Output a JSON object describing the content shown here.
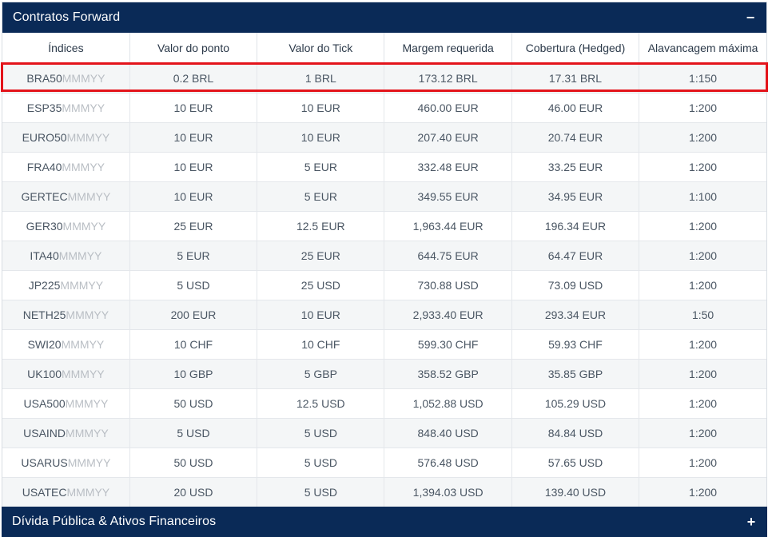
{
  "section_forward": {
    "title": "Contratos Forward",
    "toggle": "−",
    "columns": [
      "Índices",
      "Valor do ponto",
      "Valor do Tick",
      "Margem requerida",
      "Cobertura (Hedged)",
      "Alavancagem máxima"
    ],
    "rows": [
      {
        "symbol": "BRA50",
        "suffix": "MMMYY",
        "point": "0.2 BRL",
        "tick": "1 BRL",
        "margin": "173.12 BRL",
        "hedged": "17.31 BRL",
        "leverage": "1:150"
      },
      {
        "symbol": "ESP35",
        "suffix": "MMMYY",
        "point": "10 EUR",
        "tick": "10 EUR",
        "margin": "460.00 EUR",
        "hedged": "46.00 EUR",
        "leverage": "1:200"
      },
      {
        "symbol": "EURO50",
        "suffix": "MMMYY",
        "point": "10 EUR",
        "tick": "10 EUR",
        "margin": "207.40 EUR",
        "hedged": "20.74 EUR",
        "leverage": "1:200"
      },
      {
        "symbol": "FRA40",
        "suffix": "MMMYY",
        "point": "10 EUR",
        "tick": "5 EUR",
        "margin": "332.48 EUR",
        "hedged": "33.25 EUR",
        "leverage": "1:200"
      },
      {
        "symbol": "GERTEC",
        "suffix": "MMMYY",
        "point": "10 EUR",
        "tick": "5 EUR",
        "margin": "349.55 EUR",
        "hedged": "34.95 EUR",
        "leverage": "1:100"
      },
      {
        "symbol": "GER30",
        "suffix": "MMMYY",
        "point": "25 EUR",
        "tick": "12.5 EUR",
        "margin": "1,963.44 EUR",
        "hedged": "196.34 EUR",
        "leverage": "1:200"
      },
      {
        "symbol": "ITA40",
        "suffix": "MMMYY",
        "point": "5 EUR",
        "tick": "25 EUR",
        "margin": "644.75 EUR",
        "hedged": "64.47 EUR",
        "leverage": "1:200"
      },
      {
        "symbol": "JP225",
        "suffix": "MMMYY",
        "point": "5 USD",
        "tick": "25 USD",
        "margin": "730.88 USD",
        "hedged": "73.09 USD",
        "leverage": "1:200"
      },
      {
        "symbol": "NETH25",
        "suffix": "MMMYY",
        "point": "200 EUR",
        "tick": "10 EUR",
        "margin": "2,933.40 EUR",
        "hedged": "293.34 EUR",
        "leverage": "1:50"
      },
      {
        "symbol": "SWI20",
        "suffix": "MMMYY",
        "point": "10 CHF",
        "tick": "10 CHF",
        "margin": "599.30 CHF",
        "hedged": "59.93 CHF",
        "leverage": "1:200"
      },
      {
        "symbol": "UK100",
        "suffix": "MMMYY",
        "point": "10 GBP",
        "tick": "5 GBP",
        "margin": "358.52 GBP",
        "hedged": "35.85 GBP",
        "leverage": "1:200"
      },
      {
        "symbol": "USA500",
        "suffix": "MMMYY",
        "point": "50 USD",
        "tick": "12.5 USD",
        "margin": "1,052.88 USD",
        "hedged": "105.29 USD",
        "leverage": "1:200"
      },
      {
        "symbol": "USAIND",
        "suffix": "MMMYY",
        "point": "5 USD",
        "tick": "5 USD",
        "margin": "848.40 USD",
        "hedged": "84.84 USD",
        "leverage": "1:200"
      },
      {
        "symbol": "USARUS",
        "suffix": "MMMYY",
        "point": "50 USD",
        "tick": "5 USD",
        "margin": "576.48 USD",
        "hedged": "57.65 USD",
        "leverage": "1:200"
      },
      {
        "symbol": "USATEC",
        "suffix": "MMMYY",
        "point": "20 USD",
        "tick": "5 USD",
        "margin": "1,394.03 USD",
        "hedged": "139.40 USD",
        "leverage": "1:200"
      }
    ]
  },
  "section_debt": {
    "title": "Dívida Pública & Ativos Financeiros",
    "toggle": "+"
  },
  "colors": {
    "header_bg": "#0a2a57",
    "highlight": "#e3141b",
    "zebra": "#f4f6f7",
    "suffix_text": "#b9bec4"
  }
}
